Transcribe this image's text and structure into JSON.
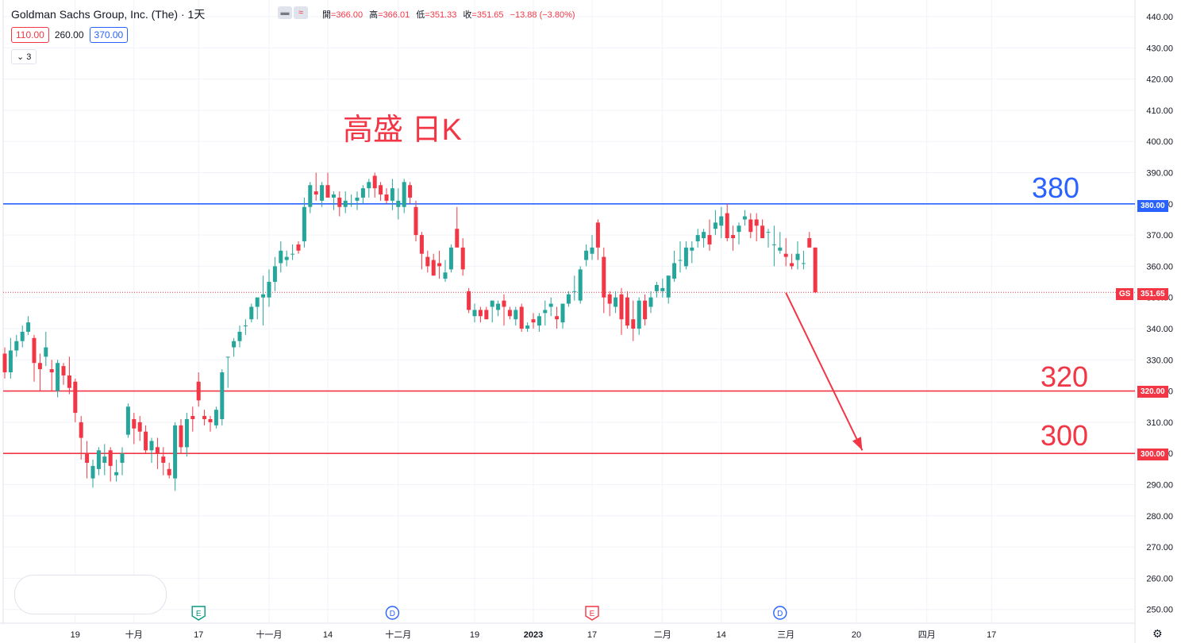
{
  "header": {
    "title": "Goldman Sachs Group, Inc. (The) · 1天",
    "ohlc": [
      {
        "label": "開",
        "value": "=366.00"
      },
      {
        "label": "高",
        "value": "=366.01"
      },
      {
        "label": "低",
        "value": "=351.33"
      },
      {
        "label": "收",
        "value": "=351.65"
      }
    ],
    "change": "−13.88 (−3.80%)",
    "levels": [
      "110.00",
      "260.00",
      "370.00"
    ],
    "collapse_label": "3"
  },
  "annotations": {
    "title": "高盛 日K",
    "label_380": "380",
    "label_320": "320",
    "label_300": "300"
  },
  "price_badges": {
    "symbol": "GS",
    "last": "351.65",
    "level_380": "380.00",
    "level_320": "320.00",
    "level_300": "300.00"
  },
  "colors": {
    "up": "#26a69a",
    "down": "#f23645",
    "resistance": "#2962ff",
    "support": "#f23645"
  },
  "chart_data": {
    "type": "candlestick",
    "symbol": "GS",
    "interval": "1天",
    "ylim": [
      245,
      445
    ],
    "y_ticks": [
      "440.00",
      "430.00",
      "420.00",
      "410.00",
      "400.00",
      "390.00",
      "380.00",
      "370.00",
      "360.00",
      "350.00",
      "340.00",
      "330.00",
      "320.00",
      "310.00",
      "300.00",
      "290.00",
      "280.00",
      "270.00",
      "260.00",
      "250.00"
    ],
    "x_ticks": [
      {
        "label": "19",
        "bar": 12
      },
      {
        "label": "十月",
        "bar": 22
      },
      {
        "label": "17",
        "bar": 33
      },
      {
        "label": "十一月",
        "bar": 45
      },
      {
        "label": "14",
        "bar": 55
      },
      {
        "label": "十二月",
        "bar": 67
      },
      {
        "label": "19",
        "bar": 80
      },
      {
        "label": "2023",
        "bar": 90
      },
      {
        "label": "17",
        "bar": 100
      },
      {
        "label": "二月",
        "bar": 112
      },
      {
        "label": "14",
        "bar": 122
      },
      {
        "label": "三月",
        "bar": 133
      },
      {
        "label": "20",
        "bar": 145
      },
      {
        "label": "四月",
        "bar": 157
      },
      {
        "label": "17",
        "bar": 168
      }
    ],
    "event_markers": [
      {
        "label": "E",
        "bar": 33,
        "kind": "earnings-past"
      },
      {
        "label": "D",
        "bar": 66,
        "kind": "dividend"
      },
      {
        "label": "E",
        "bar": 100,
        "kind": "earnings-next"
      },
      {
        "label": "D",
        "bar": 132,
        "kind": "dividend"
      }
    ],
    "horizontal_lines": [
      {
        "price": 380,
        "color": "#2962ff"
      },
      {
        "price": 320,
        "color": "#f23645"
      },
      {
        "price": 300,
        "color": "#f23645"
      }
    ],
    "last_price": 351.65,
    "projection": {
      "from_bar": 133,
      "from_price": 351.5,
      "to_bar": 146,
      "to_price": 301
    },
    "candles": [
      [
        332,
        334,
        324,
        326
      ],
      [
        326,
        337,
        324,
        333
      ],
      [
        333,
        338,
        331,
        336
      ],
      [
        336,
        341,
        334,
        339
      ],
      [
        339,
        344,
        338,
        342
      ],
      [
        337,
        338,
        323,
        329
      ],
      [
        329,
        332,
        320,
        327
      ],
      [
        331,
        339,
        328,
        334
      ],
      [
        327,
        330,
        320,
        326
      ],
      [
        320,
        330,
        318,
        329
      ],
      [
        328,
        329,
        322,
        325
      ],
      [
        325,
        331,
        319,
        321
      ],
      [
        323,
        324,
        310,
        313
      ],
      [
        310,
        312,
        298,
        305
      ],
      [
        300,
        304,
        292,
        297
      ],
      [
        292,
        298,
        289,
        296
      ],
      [
        295,
        302,
        293,
        301
      ],
      [
        297,
        303,
        293,
        299
      ],
      [
        301,
        302,
        291,
        296
      ],
      [
        293,
        298,
        291,
        294
      ],
      [
        297,
        302,
        293,
        300
      ],
      [
        306,
        316,
        305,
        315
      ],
      [
        311,
        313,
        303,
        308
      ],
      [
        310,
        312,
        304,
        307
      ],
      [
        307,
        309,
        300,
        301
      ],
      [
        301,
        305,
        297,
        304
      ],
      [
        302,
        305,
        295,
        300
      ],
      [
        299,
        302,
        293,
        297
      ],
      [
        295,
        297,
        292,
        293
      ],
      [
        292,
        310,
        288,
        309
      ],
      [
        309,
        311,
        300,
        302
      ],
      [
        302,
        313,
        299,
        311
      ],
      [
        312,
        315,
        307,
        311
      ],
      [
        323,
        326,
        315,
        317
      ],
      [
        312,
        314,
        309,
        311
      ],
      [
        311,
        312,
        307,
        310
      ],
      [
        309,
        315,
        308,
        314
      ],
      [
        311,
        327,
        309,
        326
      ],
      [
        331,
        331,
        321,
        331
      ],
      [
        334,
        337,
        331,
        336
      ],
      [
        336,
        341,
        334,
        339
      ],
      [
        341,
        343,
        338,
        341
      ],
      [
        343,
        348,
        342,
        347
      ],
      [
        347,
        350,
        343,
        350
      ],
      [
        350,
        357,
        341,
        351
      ],
      [
        350,
        359,
        347,
        355
      ],
      [
        355,
        363,
        352,
        360
      ],
      [
        361,
        368,
        358,
        365
      ],
      [
        362,
        365,
        360,
        363
      ],
      [
        364,
        367,
        362,
        364
      ],
      [
        367,
        368,
        364,
        365
      ],
      [
        368,
        382,
        366,
        379
      ],
      [
        379,
        387,
        377,
        386
      ],
      [
        384,
        390,
        381,
        383
      ],
      [
        381,
        387,
        379,
        386
      ],
      [
        386,
        390,
        382,
        382
      ],
      [
        382,
        384,
        378,
        383
      ],
      [
        382,
        384,
        376,
        379
      ],
      [
        379,
        384,
        377,
        381
      ],
      [
        380,
        383,
        379,
        380
      ],
      [
        381,
        384,
        378,
        382
      ],
      [
        382,
        386,
        380,
        385
      ],
      [
        385,
        388,
        382,
        387
      ],
      [
        389,
        390,
        382,
        385
      ],
      [
        386,
        387,
        381,
        383
      ],
      [
        383,
        385,
        380,
        381
      ],
      [
        381,
        388,
        378,
        385
      ],
      [
        379,
        385,
        375,
        381
      ],
      [
        379,
        388,
        377,
        387
      ],
      [
        386,
        387,
        380,
        382
      ],
      [
        379,
        381,
        368,
        370
      ],
      [
        370,
        371,
        359,
        364
      ],
      [
        363,
        365,
        358,
        360
      ],
      [
        362,
        364,
        357,
        357
      ],
      [
        361,
        365,
        356,
        360
      ],
      [
        356,
        362,
        355,
        358
      ],
      [
        359,
        367,
        358,
        366
      ],
      [
        372,
        379,
        368,
        366
      ],
      [
        366,
        369,
        357,
        359
      ],
      [
        352,
        353,
        345,
        346
      ],
      [
        344,
        348,
        342,
        346
      ],
      [
        346,
        347,
        342,
        344
      ],
      [
        346,
        347,
        343,
        343
      ],
      [
        347,
        348,
        342,
        349
      ],
      [
        346,
        349,
        344,
        348
      ],
      [
        349,
        351,
        341,
        347
      ],
      [
        346,
        347,
        343,
        344
      ],
      [
        343,
        347,
        341,
        346
      ],
      [
        347,
        348,
        339,
        340
      ],
      [
        340,
        342,
        339,
        341
      ],
      [
        343,
        345,
        340,
        342
      ],
      [
        341,
        345,
        339,
        344
      ],
      [
        345,
        349,
        341,
        346
      ],
      [
        347,
        350,
        344,
        348
      ],
      [
        344,
        347,
        340,
        343
      ],
      [
        342,
        348,
        340,
        348
      ],
      [
        348,
        352,
        347,
        351
      ],
      [
        352,
        357,
        349,
        352
      ],
      [
        349,
        360,
        348,
        359
      ],
      [
        362,
        367,
        360,
        365
      ],
      [
        364,
        370,
        362,
        366
      ],
      [
        374,
        375,
        362,
        366
      ],
      [
        363,
        366,
        345,
        350
      ],
      [
        351,
        352,
        344,
        348
      ],
      [
        347,
        352,
        345,
        350
      ],
      [
        351,
        353,
        338,
        343
      ],
      [
        350,
        352,
        340,
        341
      ],
      [
        343,
        349,
        336,
        340
      ],
      [
        340,
        350,
        338,
        349
      ],
      [
        349,
        351,
        341,
        343
      ],
      [
        347,
        352,
        345,
        350
      ],
      [
        352,
        355,
        350,
        354
      ],
      [
        352,
        356,
        350,
        353
      ],
      [
        350,
        357,
        348,
        357
      ],
      [
        356,
        365,
        355,
        361
      ],
      [
        362,
        368,
        358,
        362
      ],
      [
        360,
        368,
        359,
        366
      ],
      [
        365,
        368,
        361,
        366
      ],
      [
        368,
        372,
        366,
        370
      ],
      [
        369,
        372,
        366,
        371
      ],
      [
        370,
        375,
        365,
        367
      ],
      [
        372,
        378,
        370,
        374
      ],
      [
        373,
        379,
        369,
        376
      ],
      [
        377,
        380,
        368,
        369
      ],
      [
        370,
        373,
        365,
        369
      ],
      [
        371,
        374,
        367,
        373
      ],
      [
        375,
        378,
        373,
        376
      ],
      [
        375,
        377,
        369,
        371
      ],
      [
        375,
        377,
        368,
        373
      ],
      [
        373,
        375,
        369,
        369
      ],
      [
        371,
        372,
        366,
        371
      ],
      [
        367,
        373,
        360,
        367
      ],
      [
        365,
        371,
        364,
        366
      ],
      [
        364,
        369,
        360,
        363
      ],
      [
        361,
        364,
        359,
        360
      ],
      [
        362,
        368,
        359,
        364
      ],
      [
        361,
        365,
        359,
        361
      ],
      [
        369,
        371,
        366,
        366
      ],
      [
        366,
        366.01,
        351.33,
        351.65
      ]
    ]
  }
}
